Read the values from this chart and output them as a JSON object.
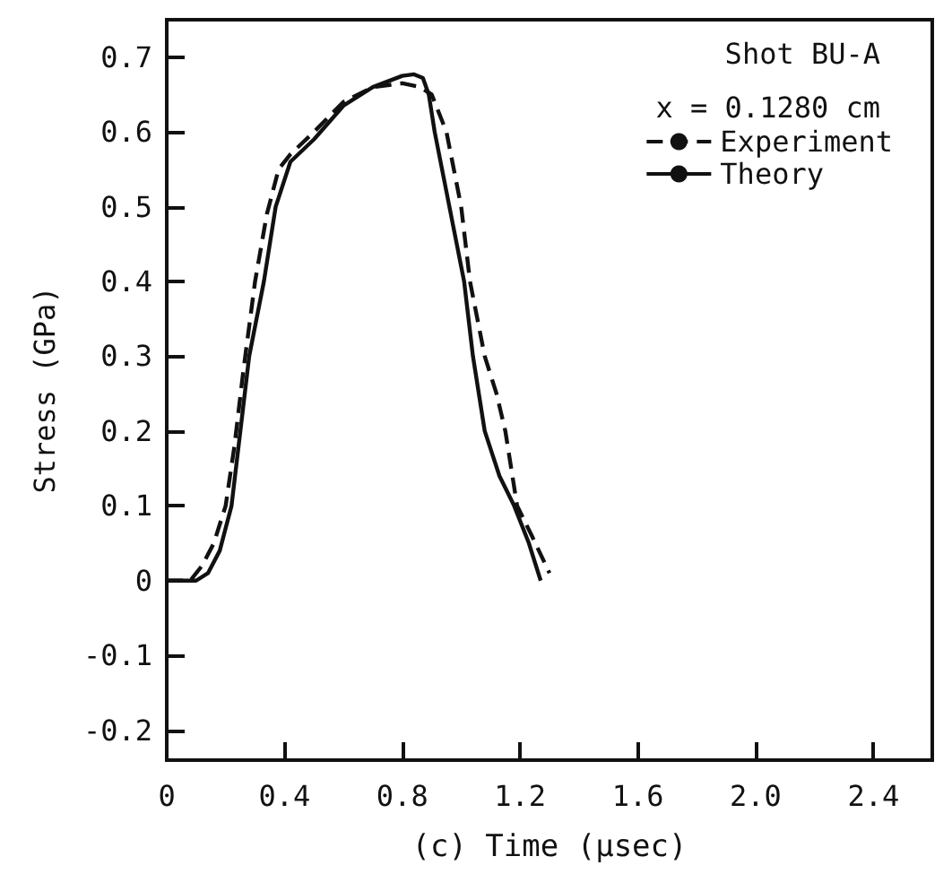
{
  "chart_data": {
    "type": "line",
    "xlabel": "(c) Time (μsec)",
    "ylabel": "Stress (GPa)",
    "annotations": [
      "Shot BU-A",
      "x = 0.1280 cm"
    ],
    "xlim": [
      0,
      2.6
    ],
    "xticks": [
      0,
      0.4,
      0.8,
      1.2,
      1.6,
      {
        "value": 2.0,
        "label": "2.0"
      },
      2.4
    ],
    "ylim": [
      -0.24,
      0.75
    ],
    "yticks": [
      -0.2,
      -0.1,
      0,
      0.1,
      0.2,
      0.3,
      0.4,
      0.5,
      0.6,
      0.7
    ],
    "grid": false,
    "legend": "top right",
    "marker": "none",
    "series": [
      {
        "name": "Experiment",
        "color": "#111111",
        "line_style": "dashed",
        "x": [
          0,
          0.08,
          0.12,
          0.16,
          0.2,
          0.23,
          0.26,
          0.3,
          0.34,
          0.38,
          0.42,
          0.5,
          0.6,
          0.7,
          0.8,
          0.86,
          0.9,
          0.95,
          1.0,
          1.03,
          1.08,
          1.12,
          1.15,
          1.19,
          1.24,
          1.3
        ],
        "values": [
          0,
          0,
          0.02,
          0.05,
          0.1,
          0.18,
          0.28,
          0.4,
          0.49,
          0.55,
          0.57,
          0.6,
          0.64,
          0.66,
          0.665,
          0.66,
          0.65,
          0.6,
          0.5,
          0.4,
          0.3,
          0.25,
          0.2,
          0.1,
          0.06,
          0.01
        ]
      },
      {
        "name": "Theory",
        "color": "#111111",
        "line_style": "solid",
        "x": [
          0,
          0.1,
          0.14,
          0.18,
          0.22,
          0.25,
          0.28,
          0.33,
          0.37,
          0.42,
          0.5,
          0.6,
          0.7,
          0.8,
          0.84,
          0.87,
          0.89,
          0.91,
          0.95,
          1.01,
          1.04,
          1.08,
          1.13,
          1.18,
          1.23,
          1.27
        ],
        "values": [
          0,
          0,
          0.01,
          0.04,
          0.1,
          0.2,
          0.3,
          0.4,
          0.5,
          0.56,
          0.59,
          0.635,
          0.66,
          0.675,
          0.677,
          0.672,
          0.65,
          0.6,
          0.52,
          0.4,
          0.3,
          0.2,
          0.14,
          0.1,
          0.05,
          0
        ]
      }
    ]
  }
}
